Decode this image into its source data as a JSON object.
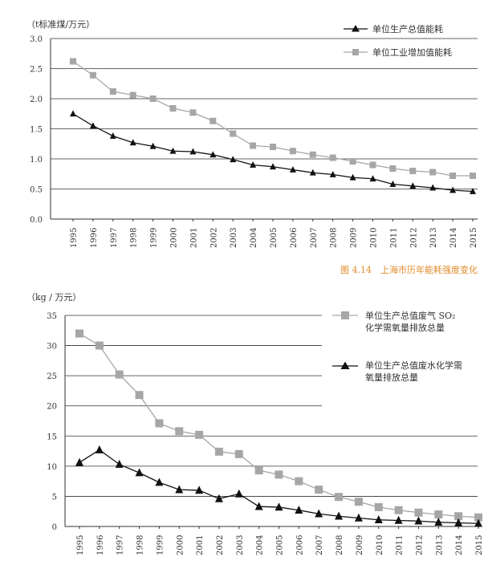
{
  "chart_data": [
    {
      "type": "line",
      "unit_label": "（t标准煤/万元）",
      "categories": [
        "1995",
        "1996",
        "1997",
        "1998",
        "1999",
        "2000",
        "2001",
        "2002",
        "2003",
        "2004",
        "2005",
        "2006",
        "2007",
        "2008",
        "2009",
        "2010",
        "2011",
        "2012",
        "2013",
        "2014",
        "2015"
      ],
      "y_ticks": [
        "0.0",
        "0.5",
        "1.0",
        "1.5",
        "2.0",
        "2.5",
        "3.0"
      ],
      "ylim": [
        0,
        3.0
      ],
      "grid": true,
      "legend_position": "top-right",
      "series": [
        {
          "name": "单位生产总值能耗",
          "color": "#111111",
          "marker": "triangle",
          "values": [
            1.75,
            1.55,
            1.38,
            1.27,
            1.21,
            1.13,
            1.12,
            1.07,
            0.99,
            0.9,
            0.87,
            0.82,
            0.77,
            0.74,
            0.69,
            0.67,
            0.58,
            0.55,
            0.52,
            0.48,
            0.46
          ]
        },
        {
          "name": "单位工业增加值能耗",
          "color": "#a6a6a6",
          "marker": "square",
          "values": [
            2.62,
            2.39,
            2.12,
            2.06,
            2.0,
            1.84,
            1.77,
            1.63,
            1.42,
            1.22,
            1.2,
            1.13,
            1.07,
            1.02,
            0.96,
            0.9,
            0.84,
            0.8,
            0.78,
            0.72,
            0.72
          ]
        }
      ],
      "caption": "图 4.14　上海市历年能耗强度变化"
    },
    {
      "type": "line",
      "unit_label": "（kg / 万元）",
      "categories": [
        "1995",
        "1996",
        "1997",
        "1998",
        "1999",
        "2000",
        "2001",
        "2002",
        "2003",
        "2004",
        "2005",
        "2006",
        "2007",
        "2008",
        "2009",
        "2010",
        "2011",
        "2012",
        "2013",
        "2014",
        "2015"
      ],
      "y_ticks": [
        "0",
        "5",
        "10",
        "15",
        "20",
        "25",
        "30",
        "35"
      ],
      "ylim": [
        0,
        35
      ],
      "grid": true,
      "legend_position": "top-right",
      "series": [
        {
          "name_line1": "单位生产总值废气 SO₂",
          "name_line2": "化学需氧量排放总量",
          "color": "#a6a6a6",
          "marker": "square",
          "values": [
            32.0,
            30.0,
            25.2,
            21.8,
            17.1,
            15.8,
            15.2,
            12.4,
            12.0,
            9.3,
            8.6,
            7.5,
            6.1,
            4.9,
            4.1,
            3.2,
            2.7,
            2.3,
            2.0,
            1.7,
            1.5
          ]
        },
        {
          "name_line1": "单位生产总值废水化学需",
          "name_line2": "氧量排放总量",
          "color": "#111111",
          "marker": "triangle",
          "values": [
            10.6,
            12.7,
            10.3,
            8.9,
            7.3,
            6.1,
            6.0,
            4.6,
            5.4,
            3.3,
            3.2,
            2.7,
            2.1,
            1.7,
            1.4,
            1.1,
            1.0,
            0.9,
            0.7,
            0.6,
            0.5
          ]
        }
      ]
    }
  ]
}
